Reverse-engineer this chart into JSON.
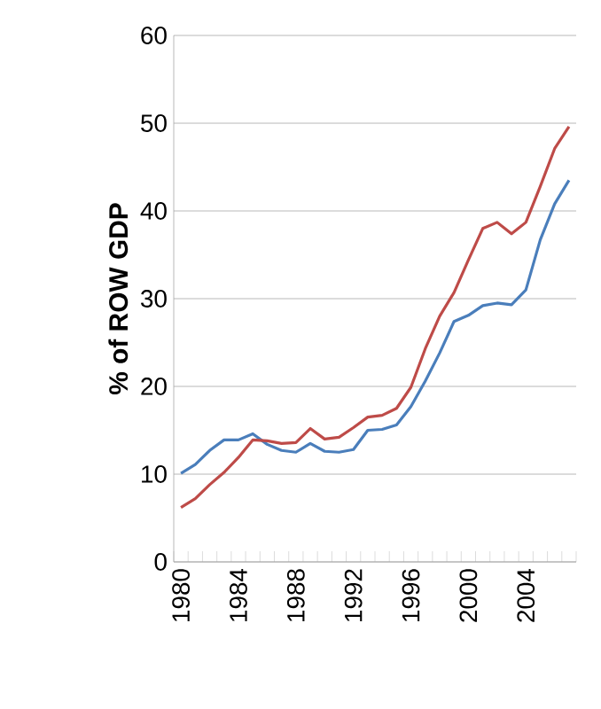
{
  "chart_data": {
    "type": "line",
    "ylabel": "% of ROW GDP",
    "categories": [
      "1980",
      null,
      null,
      null,
      "1984",
      null,
      null,
      null,
      "1988",
      null,
      null,
      null,
      "1992",
      null,
      null,
      null,
      "1996",
      null,
      null,
      null,
      "2000",
      null,
      null,
      null,
      "2004",
      null,
      null,
      null
    ],
    "series": [
      {
        "color": "#4a7ebb",
        "values": [
          10.1,
          11.1,
          12.7,
          13.9,
          13.9,
          14.6,
          13.4,
          12.7,
          12.5,
          13.5,
          12.6,
          12.5,
          12.8,
          15.0,
          15.1,
          15.6,
          17.7,
          20.6,
          23.8,
          27.4,
          28.1,
          29.2,
          29.5,
          29.3,
          31.0,
          36.7,
          40.8,
          43.5
        ]
      },
      {
        "color": "#be4b48",
        "values": [
          6.2,
          7.2,
          8.8,
          10.2,
          11.9,
          13.9,
          13.8,
          13.5,
          13.6,
          15.2,
          14.0,
          14.2,
          15.3,
          16.5,
          16.7,
          17.5,
          19.9,
          24.3,
          28.0,
          30.7,
          34.4,
          38.0,
          38.7,
          37.4,
          38.7,
          42.8,
          47.1,
          49.6
        ]
      }
    ],
    "ylim": [
      0,
      60
    ],
    "yticks": [
      0,
      10,
      20,
      30,
      40,
      50,
      60
    ],
    "grid": "y",
    "marker": "none",
    "line_style": "solid"
  }
}
